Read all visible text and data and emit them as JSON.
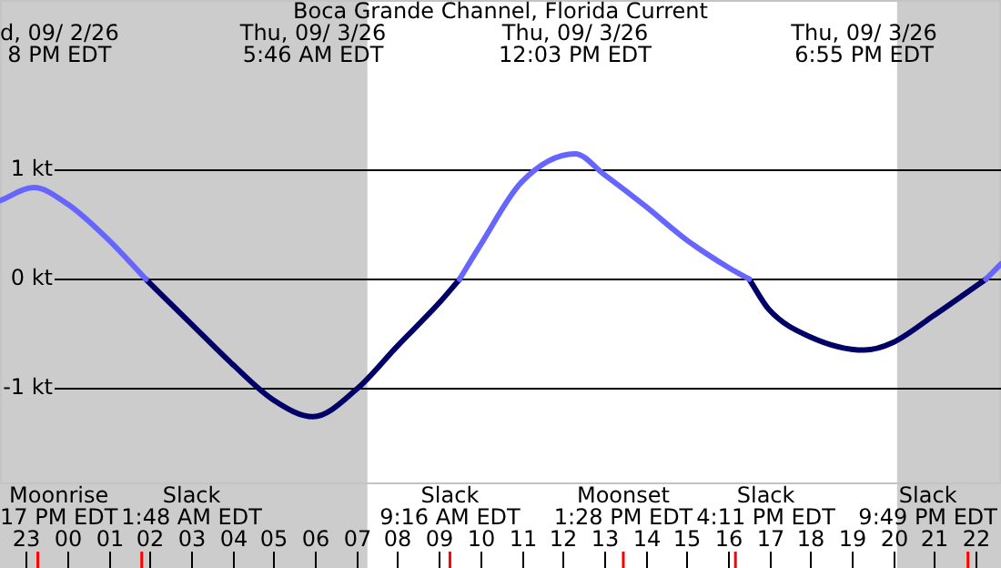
{
  "chart_data": {
    "type": "line",
    "title": "Boca Grande Channel, Florida Current",
    "x": [
      "--09-02T22:22",
      "--09-02T23:11",
      "--09-03T00:00",
      "--09-03T01:00",
      "--09-03T01:54",
      "--09-03T03:00",
      "--09-03T04:00",
      "--09-03T05:00",
      "--09-03T05:57",
      "--09-03T07:00",
      "--09-03T08:00",
      "--09-03T09:00",
      "--09-03T09:30",
      "--09-03T10:00",
      "--09-03T11:00",
      "--09-03T12:18",
      "--09-03T13:00",
      "--09-03T14:00",
      "--09-03T15:00",
      "--09-03T16:00",
      "--09-03T16:31",
      "--09-03T17:00",
      "--09-03T18:00",
      "--09-03T19:18",
      "--09-03T20:00",
      "--09-03T21:00",
      "--09-03T22:15",
      "--09-03T22:37"
    ],
    "series": [
      {
        "color": "#6666ff",
        "values": [
          0.72,
          0.84,
          0.69,
          0.36,
          0,
          null,
          null,
          null,
          null,
          null,
          null,
          null,
          0,
          0.31,
          0.89,
          1.15,
          0.96,
          0.67,
          0.36,
          0.11,
          0,
          null,
          null,
          null,
          null,
          null,
          0,
          0.14
        ]
      },
      {
        "color": "#000066",
        "values": [
          null,
          null,
          null,
          null,
          0,
          -0.41,
          -0.78,
          -1.11,
          -1.26,
          -1.01,
          -0.61,
          -0.22,
          0,
          null,
          null,
          null,
          null,
          null,
          null,
          null,
          0,
          -0.28,
          -0.53,
          -0.65,
          -0.58,
          -0.33,
          0,
          null
        ]
      }
    ],
    "xlim": [
      "--09-02T22:22",
      "--09-03T22:37"
    ],
    "xticks": [
      {
        "value": "--09-02T23:00",
        "label": "23"
      },
      {
        "value": "--09-03T00:00",
        "label": "00"
      },
      {
        "value": "--09-03T01:00",
        "label": "01"
      },
      {
        "value": "--09-03T02:00",
        "label": "02"
      },
      {
        "value": "--09-03T03:00",
        "label": "03"
      },
      {
        "value": "--09-03T04:00",
        "label": "04"
      },
      {
        "value": "--09-03T05:00",
        "label": "05"
      },
      {
        "value": "--09-03T06:00",
        "label": "06"
      },
      {
        "value": "--09-03T07:00",
        "label": "07"
      },
      {
        "value": "--09-03T08:00",
        "label": "08"
      },
      {
        "value": "--09-03T09:00",
        "label": "09"
      },
      {
        "value": "--09-03T10:00",
        "label": "10"
      },
      {
        "value": "--09-03T11:00",
        "label": "11"
      },
      {
        "value": "--09-03T12:00",
        "label": "12"
      },
      {
        "value": "--09-03T13:00",
        "label": "13"
      },
      {
        "value": "--09-03T14:00",
        "label": "14"
      },
      {
        "value": "--09-03T15:00",
        "label": "15"
      },
      {
        "value": "--09-03T16:00",
        "label": "16"
      },
      {
        "value": "--09-03T17:00",
        "label": "17"
      },
      {
        "value": "--09-03T18:00",
        "label": "18"
      },
      {
        "value": "--09-03T19:00",
        "label": "19"
      },
      {
        "value": "--09-03T20:00",
        "label": "20"
      },
      {
        "value": "--09-03T21:00",
        "label": "21"
      },
      {
        "value": "--09-03T22:00",
        "label": "22"
      }
    ],
    "ylim": [
      -1.88,
      2.56
    ],
    "yticks": [
      {
        "value": -1,
        "label": "-1 kt"
      },
      {
        "value": 0,
        "label": "0 kt"
      },
      {
        "value": 1,
        "label": "1 kt"
      }
    ],
    "grid": "y",
    "legend": false,
    "marker": "none",
    "line_style": "solid",
    "bands": [
      {
        "axis": "x",
        "from": "--09-02T22:22",
        "to": "--09-03T07:16",
        "color": "#cccccc"
      },
      {
        "axis": "x",
        "from": "--09-03T20:06",
        "to": "--09-03T22:37",
        "color": "#cccccc"
      }
    ],
    "ref_lines": [
      {
        "axis": "x",
        "value": "--09-02T23:17",
        "label": "Moonrise\n17 PM EDT",
        "color": "#ff0000"
      },
      {
        "axis": "x",
        "value": "--09-03T01:48",
        "label": "Slack\n1:48 AM EDT",
        "color": "#ff0000"
      },
      {
        "axis": "x",
        "value": "--09-03T09:16",
        "label": "Slack\n9:16 AM EDT",
        "color": "#ff0000"
      },
      {
        "axis": "x",
        "value": "--09-03T13:28",
        "label": "Moonset\n1:28 PM EDT",
        "color": "#ff0000"
      },
      {
        "axis": "x",
        "value": "--09-03T16:11",
        "label": "Slack\n4:11 PM EDT",
        "color": "#ff0000"
      },
      {
        "axis": "x",
        "value": "--09-03T21:49",
        "label": "Slack\n9:49 PM EDT",
        "color": "#ff0000"
      }
    ],
    "annotations": [
      "d, 09/ 2/26\n8 PM EDT",
      "Thu, 09/ 3/26\n5:46 AM EDT",
      "Thu, 09/ 3/26\n12:03 PM EDT",
      "Thu, 09/ 3/26\n6:55 PM EDT"
    ]
  }
}
